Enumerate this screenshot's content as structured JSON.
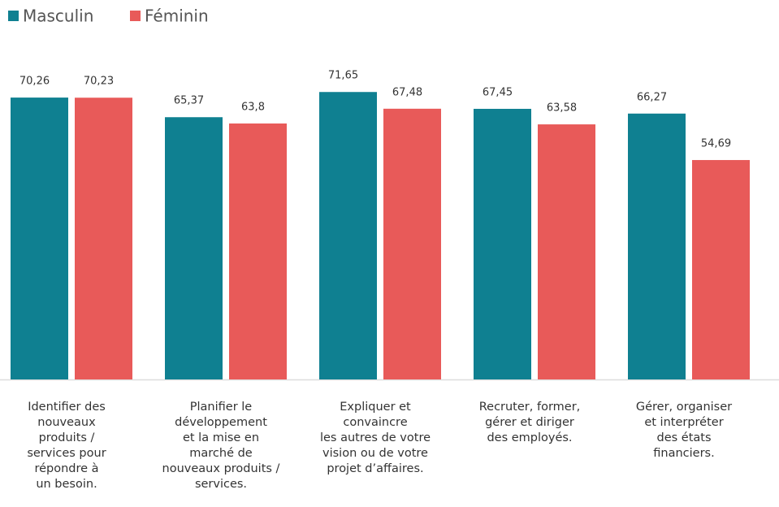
{
  "chart_data": {
    "type": "bar",
    "categories": [
      "Identifier des\nnouveaux\nproduits /\nservices pour\nrépondre à\nun besoin.",
      "Planifier le\ndéveloppement\net la mise en\nmarché de\nnouveaux produits /\nservices.",
      "Expliquer et\nconvaincre\nles autres de votre\nvision ou de votre\nprojet d’affaires.",
      "Recruter, former,\ngérer et diriger\ndes employés.",
      "Gérer, organiser\net interpréter\ndes états\nfinanciers."
    ],
    "series": [
      {
        "name": "Masculin",
        "color": "#0f8091",
        "values": [
          70.26,
          65.37,
          71.65,
          67.45,
          66.27
        ],
        "value_labels": [
          "70,26",
          "65,37",
          "71,65",
          "67,45",
          "66,27"
        ]
      },
      {
        "name": "Féminin",
        "color": "#e85a59",
        "values": [
          70.23,
          63.8,
          67.48,
          63.58,
          54.69
        ],
        "value_labels": [
          "70,23",
          "63,8",
          "67,48",
          "63,58",
          "54,69"
        ]
      }
    ],
    "ylim": [
      0,
      80
    ]
  }
}
